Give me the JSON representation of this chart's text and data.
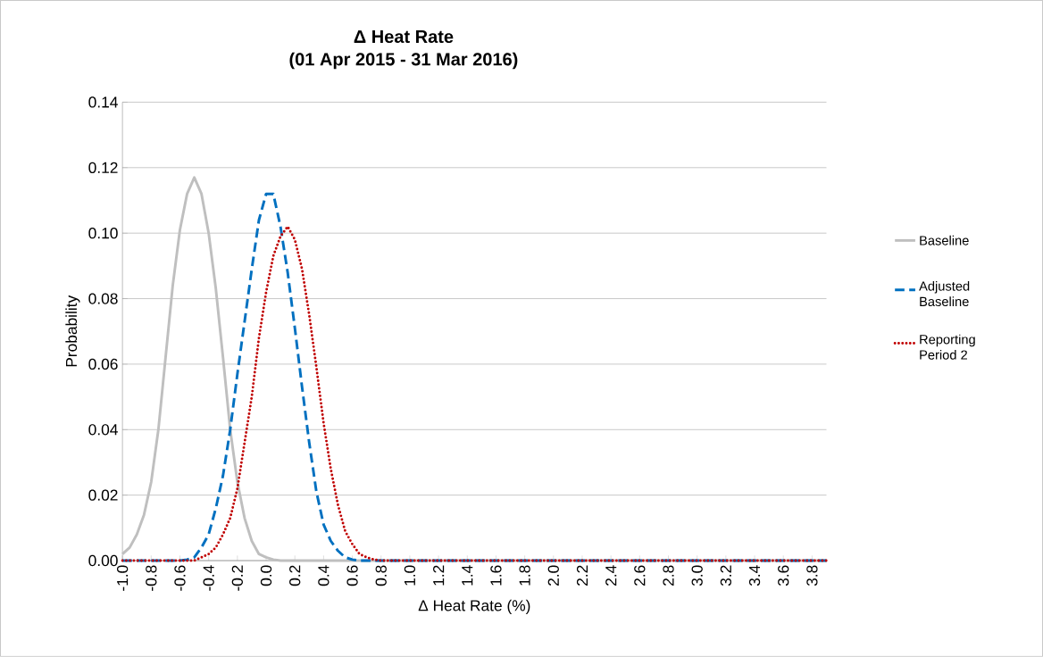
{
  "chart_data": {
    "type": "line",
    "title": "Δ Heat Rate",
    "subtitle": "(01 Apr 2015 - 31 Mar 2016)",
    "xlabel": "Δ Heat Rate (%)",
    "ylabel": "Probability",
    "xlim": [
      -1.0,
      3.9
    ],
    "ylim": [
      0,
      0.14
    ],
    "xticks": [
      {
        "value": -1.0,
        "label": "-1.0"
      },
      -0.8,
      -0.6,
      -0.4,
      -0.2,
      {
        "value": 0.0,
        "label": "0.0"
      },
      0.2,
      0.4,
      0.6,
      0.8,
      {
        "value": 1.0,
        "label": "1.0"
      },
      1.2,
      1.4,
      1.6,
      1.8,
      {
        "value": 2.0,
        "label": "2.0"
      },
      2.2,
      2.4,
      2.6,
      2.8,
      {
        "value": 3.0,
        "label": "3.0"
      },
      3.2,
      3.4,
      3.6,
      3.8
    ],
    "yticks": [
      {
        "value": 0,
        "label": "0.00"
      },
      {
        "value": 0.02,
        "label": "0.02"
      },
      {
        "value": 0.04,
        "label": "0.04"
      },
      {
        "value": 0.06,
        "label": "0.06"
      },
      {
        "value": 0.08,
        "label": "0.08"
      },
      {
        "value": 0.1,
        "label": "0.10"
      },
      {
        "value": 0.12,
        "label": "0.12"
      },
      {
        "value": 0.14,
        "label": "0.14"
      }
    ],
    "grid": "y",
    "legend": "right",
    "series": [
      {
        "name": "Baseline",
        "color": "#bfbfbf",
        "line_style": "solid",
        "x": [
          -1.0,
          -0.95,
          -0.9,
          -0.85,
          -0.8,
          -0.75,
          -0.7,
          -0.65,
          -0.6,
          -0.55,
          -0.5,
          -0.45,
          -0.4,
          -0.35,
          -0.3,
          -0.25,
          -0.2,
          -0.15,
          -0.1,
          -0.05,
          0.0,
          0.05,
          0.1,
          1.0,
          2.0,
          3.0,
          3.9
        ],
        "values": [
          0.002,
          0.004,
          0.008,
          0.014,
          0.024,
          0.04,
          0.062,
          0.084,
          0.101,
          0.112,
          0.117,
          0.112,
          0.1,
          0.083,
          0.062,
          0.04,
          0.024,
          0.013,
          0.006,
          0.002,
          0.001,
          0.0003,
          0,
          0,
          0,
          0,
          0
        ]
      },
      {
        "name": "Adjusted Baseline",
        "color": "#0070c0",
        "line_style": "dashed",
        "x": [
          -1.0,
          -0.8,
          -0.6,
          -0.55,
          -0.5,
          -0.45,
          -0.4,
          -0.35,
          -0.3,
          -0.25,
          -0.2,
          -0.15,
          -0.1,
          -0.05,
          0.0,
          0.05,
          0.1,
          0.15,
          0.2,
          0.25,
          0.3,
          0.35,
          0.4,
          0.45,
          0.5,
          0.55,
          0.6,
          0.65,
          1.0,
          2.0,
          3.0,
          3.9
        ],
        "values": [
          0,
          0,
          0,
          0.0003,
          0.001,
          0.004,
          0.008,
          0.016,
          0.026,
          0.04,
          0.057,
          0.073,
          0.089,
          0.104,
          0.112,
          0.112,
          0.102,
          0.088,
          0.071,
          0.053,
          0.036,
          0.021,
          0.011,
          0.006,
          0.003,
          0.001,
          0.0003,
          0,
          0,
          0,
          0,
          0
        ]
      },
      {
        "name": "Reporting Period 2",
        "color": "#c00000",
        "line_style": "dotted",
        "x": [
          -1.0,
          -0.8,
          -0.6,
          -0.5,
          -0.45,
          -0.4,
          -0.35,
          -0.3,
          -0.25,
          -0.2,
          -0.15,
          -0.1,
          -0.05,
          0.0,
          0.05,
          0.1,
          0.15,
          0.2,
          0.25,
          0.3,
          0.35,
          0.4,
          0.45,
          0.5,
          0.55,
          0.6,
          0.65,
          0.7,
          0.75,
          0.8,
          1.0,
          2.0,
          3.0,
          3.9
        ],
        "values": [
          0,
          0,
          0,
          0,
          0.001,
          0.002,
          0.004,
          0.008,
          0.013,
          0.022,
          0.036,
          0.05,
          0.068,
          0.082,
          0.093,
          0.099,
          0.102,
          0.098,
          0.089,
          0.075,
          0.059,
          0.042,
          0.028,
          0.017,
          0.009,
          0.005,
          0.002,
          0.001,
          0.0003,
          0,
          0,
          0,
          0,
          0
        ]
      }
    ]
  }
}
